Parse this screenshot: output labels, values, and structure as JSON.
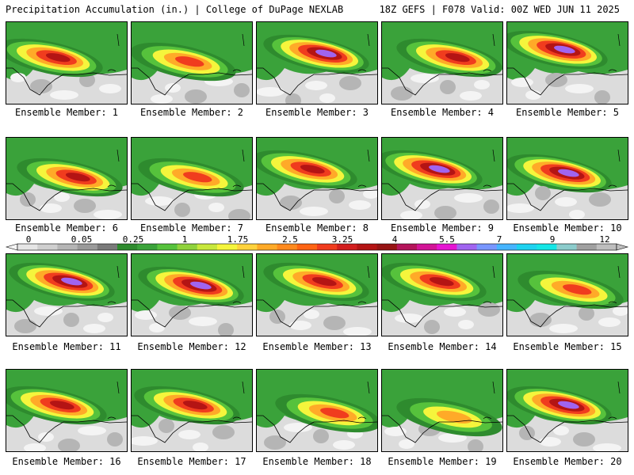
{
  "header": {
    "title": "Precipitation Accumulation (in.) | College of DuPage NEXLAB",
    "run": "18Z GEFS | F078 Valid: 00Z WED JUN 11 2025"
  },
  "colorbar": {
    "labels": [
      "0",
      "0.05",
      "0.25",
      "1",
      "1.75",
      "2.5",
      "3.25",
      "4",
      "5.5",
      "7",
      "9",
      "12"
    ],
    "colors": [
      "#e6e6e6",
      "#cfcfcf",
      "#b5b5b5",
      "#9a9a9a",
      "#7a7a7a",
      "#2e8b2e",
      "#3aa23a",
      "#56c23c",
      "#8fd23c",
      "#c8e83c",
      "#f5f53c",
      "#ffd23c",
      "#ffaa28",
      "#ff8a1e",
      "#ff6414",
      "#f03c1e",
      "#d21e1e",
      "#b41414",
      "#961414",
      "#b4145a",
      "#d21496",
      "#e614d2",
      "#a064f0",
      "#7896ff",
      "#46b4ff",
      "#1ed2f0",
      "#14e6e6",
      "#8ccccc",
      "#a0a0a0",
      "#bebebe"
    ]
  },
  "members": [
    {
      "label": "Ensemble Member: 1"
    },
    {
      "label": "Ensemble Member: 2"
    },
    {
      "label": "Ensemble Member: 3"
    },
    {
      "label": "Ensemble Member: 4"
    },
    {
      "label": "Ensemble Member: 5"
    },
    {
      "label": "Ensemble Member: 6"
    },
    {
      "label": "Ensemble Member: 7"
    },
    {
      "label": "Ensemble Member: 8"
    },
    {
      "label": "Ensemble Member: 9"
    },
    {
      "label": "Ensemble Member: 10"
    },
    {
      "label": "Ensemble Member: 11"
    },
    {
      "label": "Ensemble Member: 12"
    },
    {
      "label": "Ensemble Member: 13"
    },
    {
      "label": "Ensemble Member: 14"
    },
    {
      "label": "Ensemble Member: 15"
    },
    {
      "label": "Ensemble Member: 16"
    },
    {
      "label": "Ensemble Member: 17"
    },
    {
      "label": "Ensemble Member: 18"
    },
    {
      "label": "Ensemble Member: 19"
    },
    {
      "label": "Ensemble Member: 20"
    }
  ]
}
